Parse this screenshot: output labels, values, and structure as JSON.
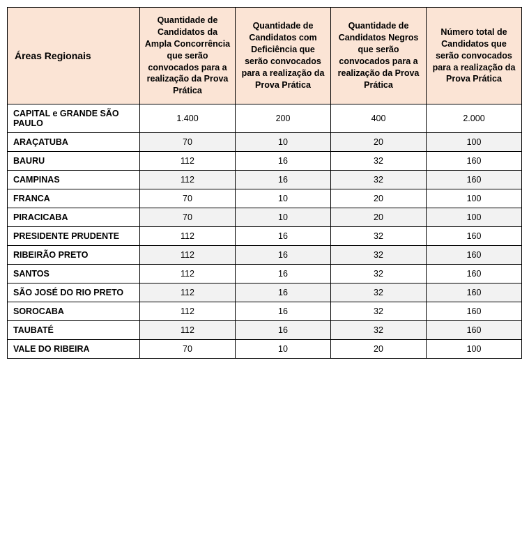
{
  "table": {
    "columns": [
      "Áreas Regionais",
      "Quantidade de Candidatos da Ampla Concorrência que serão convocados para a realização da Prova Prática",
      "Quantidade de Candidatos com Deficiência que serão convocados para a realização da Prova Prática",
      "Quantidade de Candidatos Negros que serão convocados para a realização da Prova Prática",
      "Número total de Candidatos que serão convocados para a realização da Prova Prática"
    ],
    "rows": [
      {
        "region": "CAPITAL e GRANDE SÃO PAULO",
        "ampla": "1.400",
        "def": "200",
        "negros": "400",
        "total": "2.000"
      },
      {
        "region": "ARAÇATUBA",
        "ampla": "70",
        "def": "10",
        "negros": "20",
        "total": "100"
      },
      {
        "region": "BAURU",
        "ampla": "112",
        "def": "16",
        "negros": "32",
        "total": "160"
      },
      {
        "region": "CAMPINAS",
        "ampla": "112",
        "def": "16",
        "negros": "32",
        "total": "160"
      },
      {
        "region": "FRANCA",
        "ampla": "70",
        "def": "10",
        "negros": "20",
        "total": "100"
      },
      {
        "region": "PIRACICABA",
        "ampla": "70",
        "def": "10",
        "negros": "20",
        "total": "100"
      },
      {
        "region": "PRESIDENTE PRUDENTE",
        "ampla": "112",
        "def": "16",
        "negros": "32",
        "total": "160"
      },
      {
        "region": "RIBEIRÃO PRETO",
        "ampla": "112",
        "def": "16",
        "negros": "32",
        "total": "160"
      },
      {
        "region": "SANTOS",
        "ampla": "112",
        "def": "16",
        "negros": "32",
        "total": "160"
      },
      {
        "region": "SÃO JOSÉ DO RIO PRETO",
        "ampla": "112",
        "def": "16",
        "negros": "32",
        "total": "160"
      },
      {
        "region": "SOROCABA",
        "ampla": "112",
        "def": "16",
        "negros": "32",
        "total": "160"
      },
      {
        "region": "TAUBATÉ",
        "ampla": "112",
        "def": "16",
        "negros": "32",
        "total": "160"
      },
      {
        "region": "VALE DO RIBEIRA",
        "ampla": "70",
        "def": "10",
        "negros": "20",
        "total": "100"
      }
    ],
    "header_bg": "#fbe4d5",
    "row_alt_bg": "#f2f2f2",
    "border_color": "#000000",
    "font_family": "Verdana",
    "header_fontsize": 12.5,
    "cell_fontsize": 12.5
  }
}
